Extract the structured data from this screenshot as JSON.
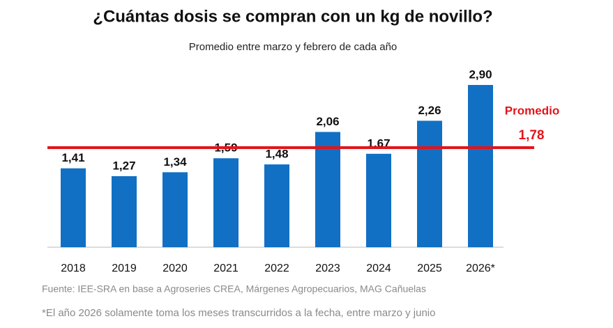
{
  "chart_data": {
    "type": "bar",
    "title": "¿Cuántas dosis se compran con un kg de novillo?",
    "subtitle": "Promedio entre marzo y febrero de cada año",
    "categories": [
      "2018",
      "2019",
      "2020",
      "2021",
      "2022",
      "2023",
      "2024",
      "2025",
      "2026*"
    ],
    "values": [
      1.41,
      1.27,
      1.34,
      1.59,
      1.48,
      2.06,
      1.67,
      2.26,
      2.9
    ],
    "value_labels": [
      "1,41",
      "1,27",
      "1,34",
      "1,59",
      "1,48",
      "2,06",
      "1,67",
      "2,26",
      "2,90"
    ],
    "color": "#1170c4",
    "reference_line": {
      "name": "Promedio",
      "value": 1.78,
      "value_label": "1,78",
      "color": "#e3141b"
    },
    "source": "Fuente: IEE-SRA en base a Agroseries CREA, Márgenes Agropecuarios, MAG Cañuelas",
    "note": "*El año 2026 solamente toma los meses transcurridos a la fecha, entre marzo y junio"
  }
}
